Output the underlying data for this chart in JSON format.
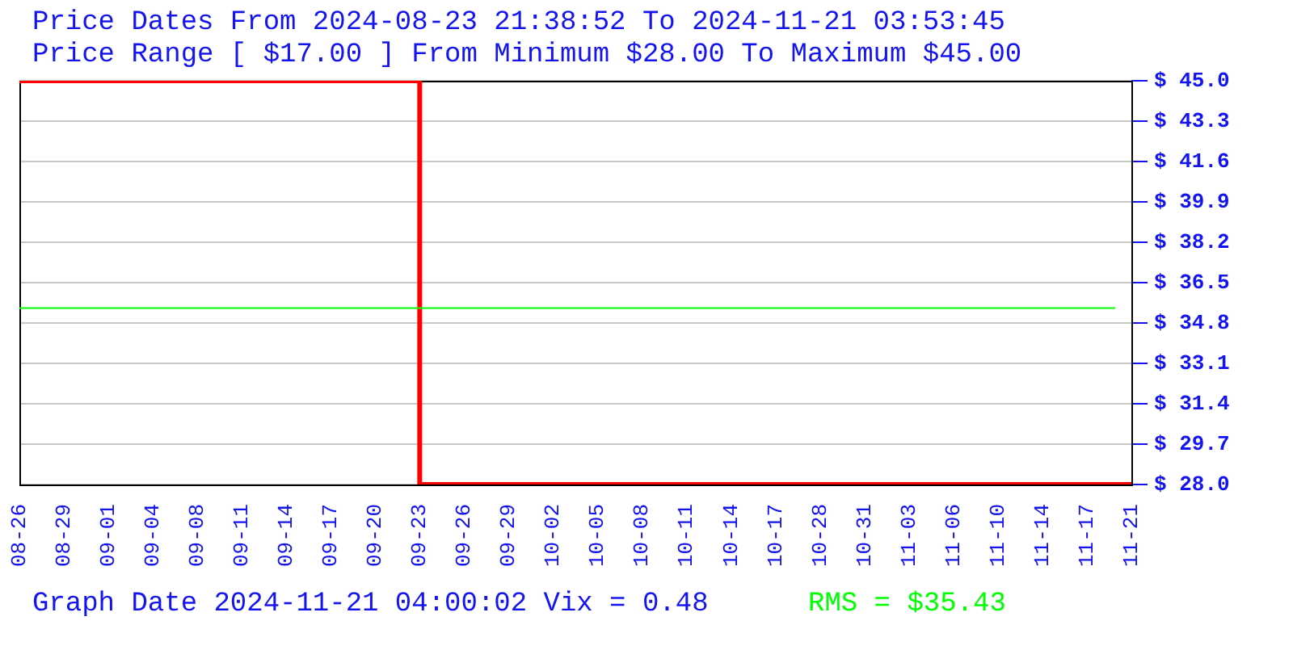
{
  "chart_data": {
    "type": "step",
    "title": "Price Dates From 2024-08-23 21:38:52 To 2024-11-21 03:53:45",
    "subtitle": "Price Range [ $17.00 ] From Minimum $28.00 To Maximum $45.00",
    "categories": [
      "08-26",
      "08-29",
      "09-01",
      "09-04",
      "09-08",
      "09-11",
      "09-14",
      "09-17",
      "09-20",
      "09-23",
      "09-26",
      "09-29",
      "10-02",
      "10-05",
      "10-08",
      "10-11",
      "10-14",
      "10-17",
      "10-28",
      "10-31",
      "11-03",
      "11-06",
      "11-10",
      "11-14",
      "11-17",
      "11-21"
    ],
    "series": [
      {
        "color": "#ff0000",
        "values": [
          45,
          45,
          45,
          45,
          45,
          45,
          45,
          45,
          45,
          28,
          28,
          28,
          28,
          28,
          28,
          28,
          28,
          28,
          28,
          28,
          28,
          28,
          28,
          28,
          28,
          28
        ]
      }
    ],
    "ylim": [
      28,
      45
    ],
    "yticks": [
      {
        "value": 28,
        "label": "$ 28.0"
      },
      {
        "value": 29.7,
        "label": "$ 29.7"
      },
      {
        "value": 31.4,
        "label": "$ 31.4"
      },
      {
        "value": 33.1,
        "label": "$ 33.1"
      },
      {
        "value": 34.8,
        "label": "$ 34.8"
      },
      {
        "value": 36.5,
        "label": "$ 36.5"
      },
      {
        "value": 38.2,
        "label": "$ 38.2"
      },
      {
        "value": 39.9,
        "label": "$ 39.9"
      },
      {
        "value": 41.6,
        "label": "$ 41.6"
      },
      {
        "value": 43.3,
        "label": "$ 43.3"
      },
      {
        "value": 45,
        "label": "$ 45.0"
      }
    ],
    "grid": "y",
    "legend": false,
    "ref_lines": [
      {
        "axis": "y",
        "value": 35.43,
        "label": "RMS = $35.43",
        "color": "#00ff00"
      }
    ],
    "annotations": [
      "Graph Date 2024-11-21 04:00:02 Vix = 0.48"
    ]
  }
}
